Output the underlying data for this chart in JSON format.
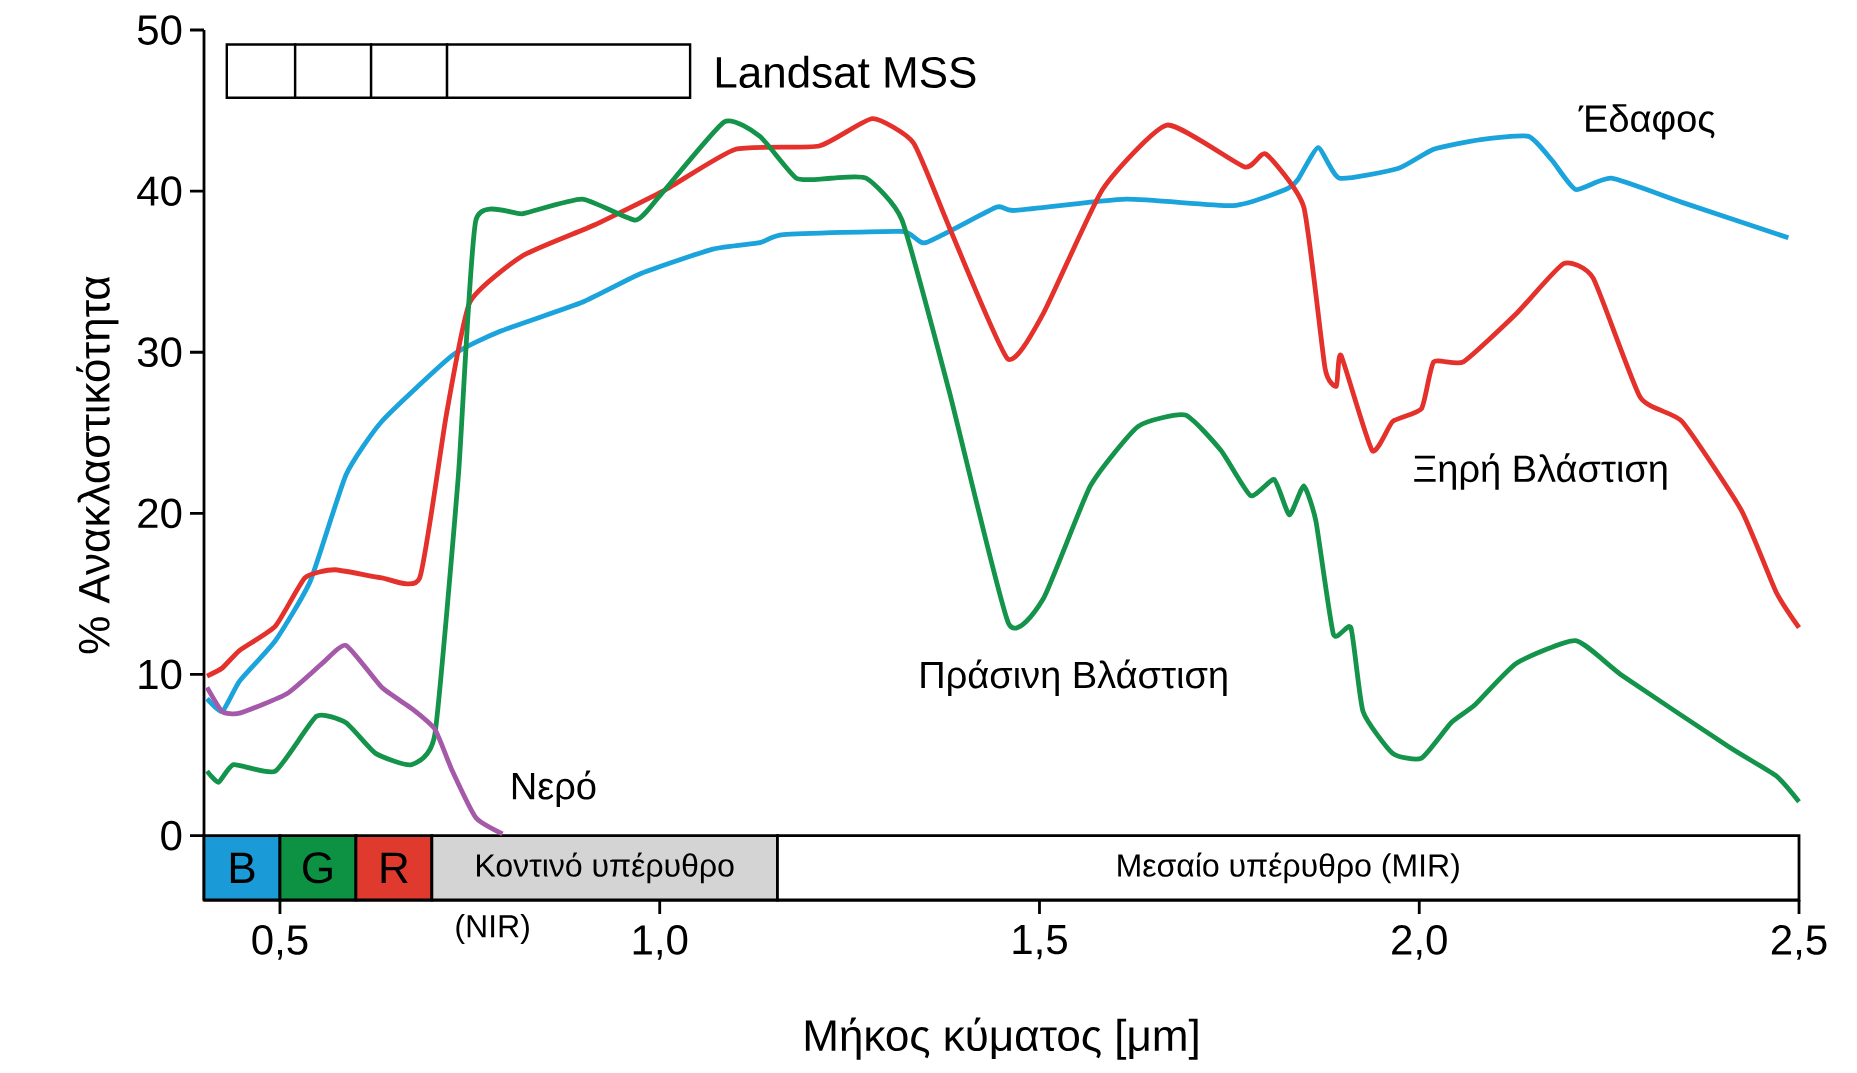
{
  "chart_data": {
    "type": "line",
    "xlabel": "Μήκος κύματος [μm]",
    "ylabel": "% Ανακλαστικότητα",
    "xlim": [
      0.4,
      2.5
    ],
    "ylim": [
      -4,
      50
    ],
    "xticks": [
      {
        "value": 0.5,
        "label": "0,5"
      },
      {
        "value": 1.0,
        "label": "1,0"
      },
      {
        "value": 1.5,
        "label": "1,5"
      },
      {
        "value": 2.0,
        "label": "2,0"
      },
      {
        "value": 2.5,
        "label": "2,5"
      }
    ],
    "yticks": [
      0,
      10,
      20,
      30,
      40,
      50
    ],
    "grid": false,
    "legend": false,
    "line_style": "solid",
    "marker": "none",
    "series": [
      {
        "name": "Έδαφος",
        "color": "#1ba3dc",
        "x": [
          0.404,
          0.424,
          0.447,
          0.494,
          0.54,
          0.587,
          0.634,
          0.727,
          0.79,
          0.898,
          0.976,
          1.07,
          1.132,
          1.163,
          1.319,
          1.35,
          1.443,
          1.467,
          1.614,
          1.755,
          1.824,
          1.84,
          1.867,
          1.895,
          1.972,
          2.019,
          2.081,
          2.144,
          2.175,
          2.206,
          2.253,
          2.346,
          2.486
        ],
        "values": [
          8.5,
          7.7,
          9.6,
          12.1,
          15.8,
          22.4,
          25.7,
          29.8,
          31.3,
          33.1,
          34.9,
          36.4,
          36.8,
          37.3,
          37.5,
          36.8,
          39.0,
          38.8,
          39.5,
          39.1,
          40.1,
          40.7,
          42.7,
          40.8,
          41.4,
          42.6,
          43.2,
          43.4,
          41.9,
          40.1,
          40.8,
          39.3,
          37.1
        ]
      },
      {
        "name": "Ξηρή Βλάστιση",
        "color": "#e4312b",
        "x": [
          0.404,
          0.424,
          0.447,
          0.494,
          0.533,
          0.572,
          0.634,
          0.684,
          0.719,
          0.75,
          0.82,
          0.914,
          1.008,
          1.1,
          1.21,
          1.28,
          1.334,
          1.38,
          1.458,
          1.505,
          1.583,
          1.668,
          1.77,
          1.798,
          1.848,
          1.876,
          1.891,
          1.897,
          1.938,
          1.965,
          2.003,
          2.019,
          2.058,
          2.128,
          2.19,
          2.229,
          2.291,
          2.346,
          2.424,
          2.47,
          2.5
        ],
        "values": [
          9.9,
          10.4,
          11.5,
          13.0,
          16.0,
          16.5,
          16.0,
          16.0,
          26.1,
          33.1,
          36.0,
          37.9,
          40.1,
          42.6,
          42.8,
          44.5,
          43.0,
          37.9,
          29.6,
          32.4,
          40.1,
          44.1,
          41.5,
          42.3,
          39.0,
          29.0,
          27.9,
          29.8,
          23.9,
          25.7,
          26.5,
          29.4,
          29.4,
          32.4,
          35.5,
          34.6,
          27.2,
          25.7,
          20.2,
          15.1,
          12.9
        ]
      },
      {
        "name": "Πράσινη Βλάστιση",
        "color": "#14934a",
        "x": [
          0.404,
          0.419,
          0.439,
          0.494,
          0.548,
          0.587,
          0.626,
          0.673,
          0.704,
          0.735,
          0.758,
          0.82,
          0.898,
          0.968,
          1.0,
          1.085,
          1.132,
          1.18,
          1.225,
          1.272,
          1.319,
          1.381,
          1.459,
          1.505,
          1.567,
          1.63,
          1.692,
          1.739,
          1.778,
          1.809,
          1.829,
          1.848,
          1.864,
          1.887,
          1.91,
          1.926,
          1.965,
          2.003,
          2.042,
          2.073,
          2.128,
          2.206,
          2.268,
          2.408,
          2.47,
          2.5
        ],
        "values": [
          4.0,
          3.3,
          4.4,
          4.0,
          7.4,
          7.0,
          5.1,
          4.4,
          6.3,
          22.4,
          38.2,
          38.6,
          39.5,
          38.2,
          39.7,
          44.3,
          43.4,
          40.8,
          40.8,
          40.8,
          38.2,
          27.6,
          13.2,
          14.7,
          21.7,
          25.4,
          26.1,
          23.9,
          21.1,
          22.1,
          19.9,
          21.7,
          19.5,
          12.5,
          12.9,
          7.7,
          5.1,
          4.8,
          7.0,
          8.1,
          10.7,
          12.1,
          9.9,
          5.5,
          3.7,
          2.1
        ]
      },
      {
        "name": "Νερό",
        "color": "#a45aa8",
        "x": [
          0.404,
          0.424,
          0.447,
          0.509,
          0.556,
          0.587,
          0.634,
          0.673,
          0.704,
          0.727,
          0.758,
          0.793
        ],
        "values": [
          9.2,
          7.7,
          7.6,
          8.8,
          10.7,
          11.8,
          9.2,
          7.9,
          6.6,
          4.0,
          1.1,
          0.1
        ]
      }
    ],
    "bands": [
      {
        "axis": "x",
        "from": 0.4,
        "to": 0.5,
        "label": "B",
        "color": "#1a9ad6"
      },
      {
        "axis": "x",
        "from": 0.5,
        "to": 0.6,
        "label": "G",
        "color": "#0d9142"
      },
      {
        "axis": "x",
        "from": 0.6,
        "to": 0.7,
        "label": "R",
        "color": "#e03a2f"
      },
      {
        "axis": "x",
        "from": 0.7,
        "to": 1.155,
        "label": "Κοντινό υπέρυθρο",
        "color": "#d4d4d4"
      },
      {
        "axis": "x",
        "from": 1.155,
        "to": 2.5,
        "label": "Μεσαίο υπέρυθρο (MIR)",
        "color": "#ffffff"
      },
      {
        "axis": "x",
        "from": 0.43,
        "to": 0.52,
        "color": "#ffffff"
      },
      {
        "axis": "x",
        "from": 0.52,
        "to": 0.62,
        "color": "#ffffff"
      },
      {
        "axis": "x",
        "from": 0.62,
        "to": 0.72,
        "color": "#ffffff"
      },
      {
        "axis": "x",
        "from": 0.72,
        "to": 1.04,
        "color": "#ffffff"
      }
    ],
    "annotations": [
      "Landsat MSS",
      "(NIR)"
    ]
  }
}
